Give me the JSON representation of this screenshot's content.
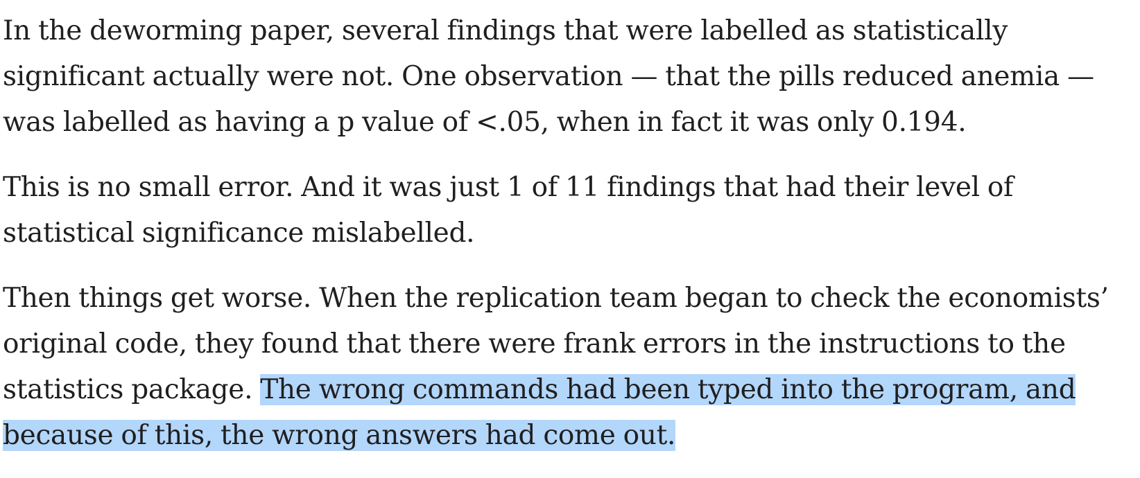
{
  "article": {
    "p1": {
      "l1": "In the deworming paper, several findings that were labelled as statistically",
      "l2": "significant actually were not. One observation — that the pills reduced anemia —",
      "l3": "was labelled as having a p value of <.05, when in fact it was only 0.194."
    },
    "p2": {
      "l1": "This is no small error. And it was just 1 of 11 findings that had their level of",
      "l2": "statistical significance mislabelled."
    },
    "p3": {
      "l1": "Then things get worse. When the replication team began to check the economists’",
      "l2": "original code, they found that there were frank errors in the instructions to the",
      "l3_plain": "statistics package. ",
      "l3_selected": "The wrong commands had been typed into the program, and",
      "l4_selected": "because of this, the wrong answers had come out."
    }
  },
  "colors": {
    "text": "#1f1f1f",
    "selection": "#b3d6fb",
    "background": "#ffffff"
  }
}
